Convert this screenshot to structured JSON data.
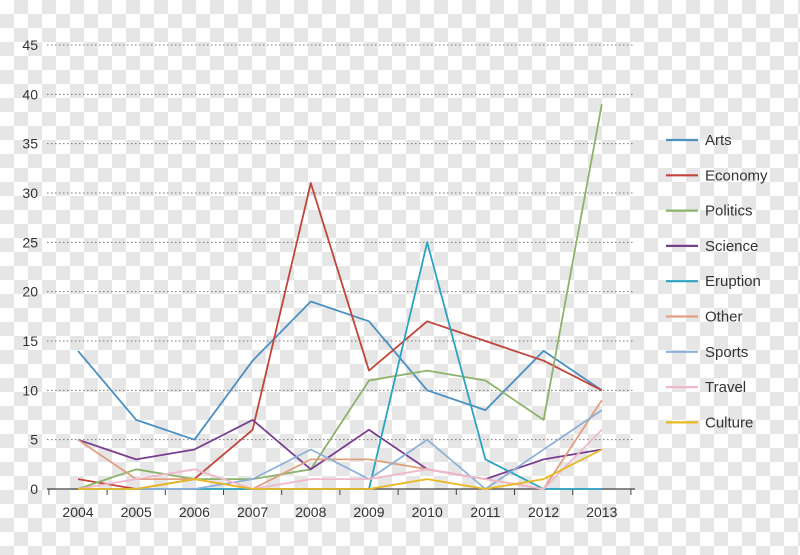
{
  "chart_data": {
    "type": "line",
    "x": [
      "2004",
      "2005",
      "2006",
      "2007",
      "2008",
      "2009",
      "2010",
      "2011",
      "2012",
      "2013"
    ],
    "ylim": [
      0,
      45
    ],
    "yticks": [
      0,
      5,
      10,
      15,
      20,
      25,
      30,
      35,
      40,
      45
    ],
    "grid": "horizontal dotted",
    "legend_position": "right",
    "series": [
      {
        "name": "Arts",
        "color": "#4a90c2",
        "values": [
          14,
          7,
          5,
          13,
          19,
          17,
          10,
          8,
          14,
          10
        ]
      },
      {
        "name": "Economy",
        "color": "#c0453b",
        "values": [
          1,
          0,
          1,
          6,
          31,
          12,
          17,
          15,
          13,
          10
        ]
      },
      {
        "name": "Politics",
        "color": "#8db36b",
        "values": [
          0,
          2,
          1,
          1,
          2,
          11,
          12,
          11,
          7,
          39
        ]
      },
      {
        "name": "Science",
        "color": "#7a3e8e",
        "values": [
          5,
          3,
          4,
          7,
          2,
          6,
          2,
          1,
          3,
          4
        ]
      },
      {
        "name": "Eruption",
        "color": "#2ba3c0",
        "values": [
          0,
          0,
          0,
          0,
          0,
          0,
          25,
          3,
          0,
          0
        ]
      },
      {
        "name": "Other",
        "color": "#e0a080",
        "values": [
          5,
          1,
          1,
          0,
          3,
          3,
          2,
          1,
          0,
          9
        ]
      },
      {
        "name": "Sports",
        "color": "#8fb0d8",
        "values": [
          0,
          0,
          0,
          1,
          4,
          1,
          5,
          0,
          4,
          8
        ]
      },
      {
        "name": "Travel",
        "color": "#f0b8c8",
        "values": [
          0,
          1,
          2,
          0,
          1,
          1,
          2,
          1,
          0,
          6
        ]
      },
      {
        "name": "Culture",
        "color": "#e8b820",
        "values": [
          0,
          0,
          1,
          0,
          0,
          0,
          1,
          0,
          1,
          4
        ]
      }
    ]
  }
}
